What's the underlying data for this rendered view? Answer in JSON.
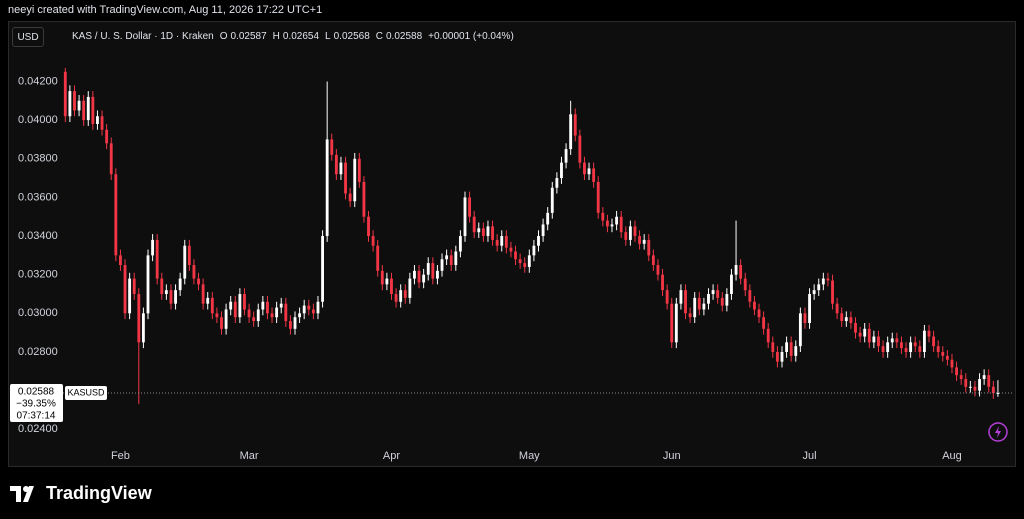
{
  "header": {
    "credit": "neeyi created with TradingView.com, Aug 11, 2026 17:22 UTC+1",
    "currency": "USD",
    "symbol": "KAS / U. S. Dollar · 1D · Kraken",
    "open_label": "O",
    "open": 0.02587,
    "high_label": "H",
    "high": 0.02654,
    "low_label": "L",
    "low": 0.02568,
    "close_label": "C",
    "close": 0.02588,
    "change": "+0.00001 (+0.04%)"
  },
  "price_tag": {
    "price": 0.02588,
    "change": "−39.35%",
    "countdown": "07:37:14",
    "symbol": "KASUSD"
  },
  "footer": {
    "brand": "TradingView"
  },
  "chart_data": {
    "type": "candlestick",
    "up_color": "#ffffff",
    "down_color": "#f23645",
    "xlim": [
      -0.5,
      206.5
    ],
    "ylim": [
      0.0221,
      0.0428
    ],
    "xticks": [
      {
        "value": 12,
        "label": "Feb"
      },
      {
        "value": 40,
        "label": "Mar"
      },
      {
        "value": 71,
        "label": "Apr"
      },
      {
        "value": 101,
        "label": "May"
      },
      {
        "value": 132,
        "label": "Jun"
      },
      {
        "value": 162,
        "label": "Jul"
      },
      {
        "value": 193,
        "label": "Aug"
      }
    ],
    "yticks": [
      {
        "value": 0.024,
        "label": "0.02400"
      },
      {
        "value": 0.028,
        "label": "0.02800"
      },
      {
        "value": 0.03,
        "label": "0.03000"
      },
      {
        "value": 0.032,
        "label": "0.03200"
      },
      {
        "value": 0.034,
        "label": "0.03400"
      },
      {
        "value": 0.036,
        "label": "0.03600"
      },
      {
        "value": 0.038,
        "label": "0.03800"
      },
      {
        "value": 0.04,
        "label": "0.04000"
      },
      {
        "value": 0.042,
        "label": "0.04200"
      }
    ],
    "open": [
      0.0425,
      0.0402,
      0.0415,
      0.0405,
      0.041,
      0.04,
      0.0412,
      0.0398,
      0.0402,
      0.0395,
      0.0388,
      0.0372,
      0.033,
      0.0325,
      0.03,
      0.0318,
      0.031,
      0.0285,
      0.03,
      0.033,
      0.0338,
      0.0318,
      0.031,
      0.0312,
      0.0305,
      0.0312,
      0.0318,
      0.0335,
      0.0325,
      0.0318,
      0.0315,
      0.0305,
      0.0308,
      0.03,
      0.0298,
      0.0292,
      0.0302,
      0.0306,
      0.0298,
      0.031,
      0.0302,
      0.0298,
      0.0296,
      0.0302,
      0.0306,
      0.03,
      0.0298,
      0.0303,
      0.0305,
      0.0296,
      0.0292,
      0.0298,
      0.03,
      0.0304,
      0.0302,
      0.03,
      0.0306,
      0.034,
      0.039,
      0.0382,
      0.0372,
      0.0378,
      0.0362,
      0.0358,
      0.038,
      0.0368,
      0.035,
      0.034,
      0.0335,
      0.0322,
      0.0315,
      0.0318,
      0.031,
      0.0306,
      0.0312,
      0.0308,
      0.0318,
      0.0322,
      0.0316,
      0.032,
      0.0326,
      0.0318,
      0.0322,
      0.0328,
      0.033,
      0.0325,
      0.0332,
      0.034,
      0.036,
      0.035,
      0.0342,
      0.0344,
      0.034,
      0.0345,
      0.0338,
      0.0335,
      0.034,
      0.0334,
      0.0332,
      0.0328,
      0.0326,
      0.0324,
      0.033,
      0.0335,
      0.034,
      0.0346,
      0.0352,
      0.0365,
      0.037,
      0.0378,
      0.0385,
      0.0403,
      0.0392,
      0.0378,
      0.0372,
      0.0375,
      0.0368,
      0.0352,
      0.0348,
      0.0345,
      0.0346,
      0.035,
      0.0342,
      0.0338,
      0.0345,
      0.034,
      0.0336,
      0.0338,
      0.033,
      0.0325,
      0.032,
      0.0312,
      0.0305,
      0.0285,
      0.0305,
      0.0312,
      0.03,
      0.0298,
      0.0308,
      0.0302,
      0.0305,
      0.031,
      0.0312,
      0.0308,
      0.0304,
      0.031,
      0.032,
      0.0325,
      0.0318,
      0.0312,
      0.0306,
      0.0302,
      0.0298,
      0.0292,
      0.0285,
      0.028,
      0.0275,
      0.028,
      0.0285,
      0.0278,
      0.0283,
      0.03,
      0.0295,
      0.031,
      0.0312,
      0.0315,
      0.0318,
      0.0317,
      0.0305,
      0.03,
      0.0296,
      0.0298,
      0.0295,
      0.029,
      0.0288,
      0.0292,
      0.0285,
      0.0288,
      0.0283,
      0.028,
      0.0285,
      0.0287,
      0.0285,
      0.0282,
      0.028,
      0.0285,
      0.0283,
      0.028,
      0.0291,
      0.0288,
      0.0283,
      0.028,
      0.0278,
      0.0276,
      0.0272,
      0.0268,
      0.0266,
      0.0262,
      0.0262,
      0.026,
      0.0266,
      0.0268,
      0.0262,
      0.02587
    ],
    "high": [
      0.0427,
      0.0418,
      0.0418,
      0.0413,
      0.0413,
      0.0415,
      0.0415,
      0.0405,
      0.0405,
      0.0398,
      0.0391,
      0.0375,
      0.0333,
      0.0328,
      0.0321,
      0.0321,
      0.0313,
      0.0303,
      0.0333,
      0.0341,
      0.0341,
      0.0321,
      0.0315,
      0.0315,
      0.0315,
      0.0321,
      0.0338,
      0.0338,
      0.0328,
      0.0321,
      0.0318,
      0.0311,
      0.0311,
      0.0303,
      0.0301,
      0.0305,
      0.0309,
      0.0309,
      0.0313,
      0.0313,
      0.0305,
      0.0301,
      0.0305,
      0.0309,
      0.0309,
      0.0303,
      0.0306,
      0.0308,
      0.0308,
      0.0299,
      0.0301,
      0.0303,
      0.0307,
      0.0307,
      0.0305,
      0.0309,
      0.0343,
      0.042,
      0.0393,
      0.0385,
      0.0381,
      0.0381,
      0.0365,
      0.0383,
      0.0383,
      0.0371,
      0.0353,
      0.0343,
      0.0338,
      0.0325,
      0.0321,
      0.0321,
      0.0313,
      0.0315,
      0.0315,
      0.0321,
      0.0325,
      0.0325,
      0.0323,
      0.0329,
      0.0329,
      0.0325,
      0.0331,
      0.0333,
      0.0333,
      0.0335,
      0.0343,
      0.0363,
      0.0363,
      0.0353,
      0.0347,
      0.0347,
      0.0348,
      0.0348,
      0.0341,
      0.0343,
      0.0343,
      0.0337,
      0.0335,
      0.0331,
      0.0329,
      0.0333,
      0.0338,
      0.0343,
      0.0349,
      0.0355,
      0.0368,
      0.0373,
      0.0381,
      0.0388,
      0.041,
      0.0406,
      0.0395,
      0.0381,
      0.0378,
      0.0378,
      0.0371,
      0.0355,
      0.0351,
      0.0349,
      0.0353,
      0.0353,
      0.0345,
      0.0348,
      0.0348,
      0.0343,
      0.0341,
      0.0341,
      0.0333,
      0.0328,
      0.0323,
      0.0315,
      0.0308,
      0.0308,
      0.0315,
      0.0315,
      0.0303,
      0.0311,
      0.0311,
      0.0308,
      0.0313,
      0.0315,
      0.0315,
      0.0311,
      0.0313,
      0.0323,
      0.0348,
      0.0328,
      0.0321,
      0.0315,
      0.0309,
      0.0305,
      0.0301,
      0.0295,
      0.0288,
      0.0283,
      0.0283,
      0.0288,
      0.0288,
      0.0286,
      0.0303,
      0.0303,
      0.0313,
      0.0315,
      0.0318,
      0.0321,
      0.0321,
      0.032,
      0.0308,
      0.0303,
      0.0301,
      0.0301,
      0.0298,
      0.0293,
      0.0295,
      0.0295,
      0.0291,
      0.0291,
      0.0286,
      0.0288,
      0.029,
      0.029,
      0.0288,
      0.0285,
      0.0288,
      0.0288,
      0.0286,
      0.0294,
      0.0294,
      0.0291,
      0.0286,
      0.0283,
      0.0281,
      0.0279,
      0.0275,
      0.0271,
      0.0269,
      0.0265,
      0.0265,
      0.0269,
      0.0271,
      0.0271,
      0.0265,
      0.02654
    ],
    "low": [
      0.0399,
      0.0399,
      0.0402,
      0.0402,
      0.0397,
      0.0397,
      0.0395,
      0.0395,
      0.0392,
      0.0385,
      0.0369,
      0.0327,
      0.0322,
      0.0297,
      0.0297,
      0.0307,
      0.0253,
      0.0282,
      0.0297,
      0.0327,
      0.0315,
      0.0307,
      0.0307,
      0.0302,
      0.0302,
      0.0309,
      0.0315,
      0.0322,
      0.0315,
      0.0312,
      0.0302,
      0.0302,
      0.0297,
      0.0295,
      0.0289,
      0.0289,
      0.0299,
      0.0295,
      0.0295,
      0.0299,
      0.0295,
      0.0293,
      0.0293,
      0.0299,
      0.0297,
      0.0295,
      0.0295,
      0.03,
      0.0293,
      0.0289,
      0.0289,
      0.0295,
      0.0297,
      0.0299,
      0.0297,
      0.0297,
      0.0303,
      0.0337,
      0.0379,
      0.0369,
      0.0369,
      0.0359,
      0.0355,
      0.0355,
      0.0365,
      0.0347,
      0.0337,
      0.0332,
      0.0319,
      0.0312,
      0.0312,
      0.0307,
      0.0303,
      0.0303,
      0.0305,
      0.0305,
      0.0315,
      0.0313,
      0.0313,
      0.0317,
      0.0315,
      0.0315,
      0.0319,
      0.0325,
      0.0322,
      0.0322,
      0.0329,
      0.0337,
      0.0347,
      0.0339,
      0.0339,
      0.0337,
      0.0337,
      0.0335,
      0.0332,
      0.0332,
      0.0331,
      0.0329,
      0.0325,
      0.0323,
      0.0321,
      0.0321,
      0.0327,
      0.0332,
      0.0337,
      0.0343,
      0.0349,
      0.0362,
      0.0367,
      0.0375,
      0.0382,
      0.0389,
      0.0375,
      0.0369,
      0.0369,
      0.0365,
      0.0349,
      0.0345,
      0.0342,
      0.0342,
      0.0343,
      0.0339,
      0.0335,
      0.0335,
      0.0337,
      0.0333,
      0.0333,
      0.0327,
      0.0322,
      0.0317,
      0.0309,
      0.0302,
      0.0282,
      0.0282,
      0.0302,
      0.0297,
      0.0295,
      0.0295,
      0.0299,
      0.0299,
      0.0302,
      0.0307,
      0.0305,
      0.0301,
      0.0301,
      0.0307,
      0.0317,
      0.0315,
      0.0309,
      0.0303,
      0.0299,
      0.0295,
      0.0289,
      0.0282,
      0.0277,
      0.0272,
      0.0272,
      0.0277,
      0.0275,
      0.0275,
      0.028,
      0.0292,
      0.0292,
      0.0307,
      0.0309,
      0.0312,
      0.0314,
      0.0302,
      0.0297,
      0.0293,
      0.0293,
      0.0292,
      0.0287,
      0.0285,
      0.0285,
      0.0282,
      0.0282,
      0.028,
      0.0277,
      0.0277,
      0.0282,
      0.0282,
      0.0279,
      0.0277,
      0.0277,
      0.028,
      0.0277,
      0.0277,
      0.0285,
      0.028,
      0.0277,
      0.0275,
      0.0273,
      0.0269,
      0.0265,
      0.0263,
      0.0259,
      0.0259,
      0.0257,
      0.0257,
      0.0263,
      0.0259,
      0.02557,
      0.02568
    ],
    "close": [
      0.0402,
      0.0415,
      0.0405,
      0.041,
      0.04,
      0.0412,
      0.0398,
      0.0402,
      0.0395,
      0.0388,
      0.0372,
      0.033,
      0.0325,
      0.03,
      0.0318,
      0.031,
      0.0285,
      0.03,
      0.033,
      0.0338,
      0.0318,
      0.031,
      0.0312,
      0.0305,
      0.0312,
      0.0318,
      0.0335,
      0.0325,
      0.0318,
      0.0315,
      0.0305,
      0.0308,
      0.03,
      0.0298,
      0.0292,
      0.0302,
      0.0306,
      0.0298,
      0.031,
      0.0302,
      0.0298,
      0.0296,
      0.0302,
      0.0306,
      0.03,
      0.0298,
      0.0303,
      0.0305,
      0.0296,
      0.0292,
      0.0298,
      0.03,
      0.0304,
      0.0302,
      0.03,
      0.0306,
      0.034,
      0.039,
      0.0382,
      0.0372,
      0.0378,
      0.0362,
      0.0358,
      0.038,
      0.0368,
      0.035,
      0.034,
      0.0335,
      0.0322,
      0.0315,
      0.0318,
      0.031,
      0.0306,
      0.0312,
      0.0308,
      0.0318,
      0.0322,
      0.0316,
      0.032,
      0.0326,
      0.0318,
      0.0322,
      0.0328,
      0.033,
      0.0325,
      0.0332,
      0.034,
      0.036,
      0.035,
      0.0342,
      0.0344,
      0.034,
      0.0345,
      0.0338,
      0.0335,
      0.034,
      0.0334,
      0.0332,
      0.0328,
      0.0326,
      0.0324,
      0.033,
      0.0335,
      0.034,
      0.0346,
      0.0352,
      0.0365,
      0.037,
      0.0378,
      0.0385,
      0.0403,
      0.0392,
      0.0378,
      0.0372,
      0.0375,
      0.0368,
      0.0352,
      0.0348,
      0.0345,
      0.0346,
      0.035,
      0.0342,
      0.0338,
      0.0345,
      0.034,
      0.0336,
      0.0338,
      0.033,
      0.0325,
      0.032,
      0.0312,
      0.0305,
      0.0285,
      0.0305,
      0.0312,
      0.03,
      0.0298,
      0.0308,
      0.0302,
      0.0305,
      0.031,
      0.0312,
      0.0308,
      0.0304,
      0.031,
      0.032,
      0.0325,
      0.0318,
      0.0312,
      0.0306,
      0.0302,
      0.0298,
      0.0292,
      0.0285,
      0.028,
      0.0275,
      0.028,
      0.0285,
      0.0278,
      0.0283,
      0.03,
      0.0295,
      0.031,
      0.0312,
      0.0315,
      0.0318,
      0.0317,
      0.0305,
      0.03,
      0.0296,
      0.0298,
      0.0295,
      0.029,
      0.0288,
      0.0292,
      0.0285,
      0.0288,
      0.0283,
      0.028,
      0.0285,
      0.0287,
      0.0285,
      0.0282,
      0.028,
      0.0285,
      0.0283,
      0.028,
      0.0291,
      0.0288,
      0.0283,
      0.028,
      0.0278,
      0.0276,
      0.0272,
      0.0268,
      0.0266,
      0.0262,
      0.0262,
      0.026,
      0.0266,
      0.0268,
      0.0262,
      0.02587,
      0.02588
    ]
  }
}
